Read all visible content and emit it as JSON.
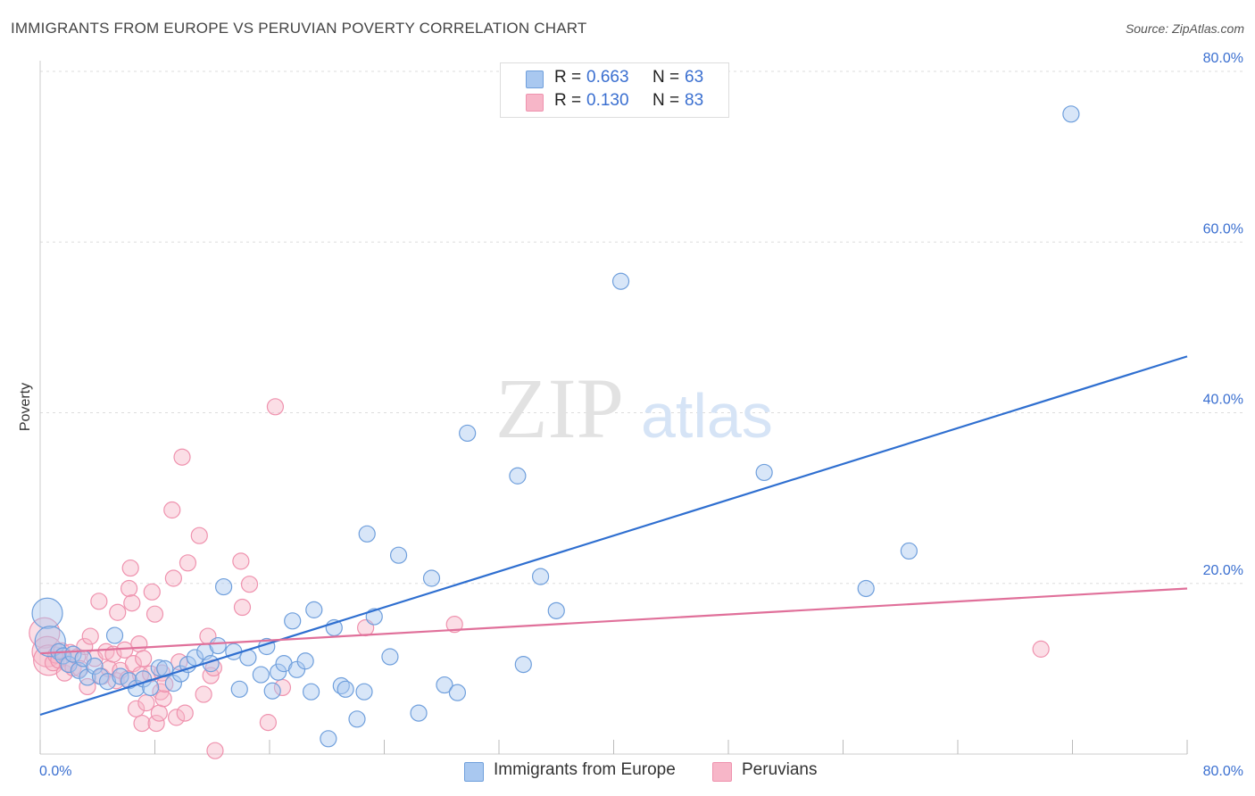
{
  "title": "IMMIGRANTS FROM EUROPE VS PERUVIAN POVERTY CORRELATION CHART",
  "source": "Source: ZipAtlas.com",
  "watermark": {
    "zip": "ZIP",
    "atlas": "atlas"
  },
  "legend": {
    "rows": [
      {
        "r_label": "R =",
        "r_value": "0.663",
        "n_label": "N =",
        "n_value": "63"
      },
      {
        "r_label": "R =",
        "r_value": "0.130",
        "n_label": "N =",
        "n_value": "83"
      }
    ]
  },
  "colors": {
    "europe_fill": "#a9c8f0",
    "europe_stroke": "#6f9fdc",
    "europe_line": "#2f6fd0",
    "peru_fill": "#f7b6c8",
    "peru_stroke": "#ef92ae",
    "peru_line": "#e0709a",
    "axis_text": "#3a6fd0",
    "grid": "#dddddd"
  },
  "chart_data": {
    "type": "scatter",
    "title": "IMMIGRANTS FROM EUROPE VS PERUVIAN POVERTY CORRELATION CHART",
    "xlabel": "",
    "ylabel": "Poverty",
    "xlim": [
      0,
      80
    ],
    "ylim": [
      0,
      80
    ],
    "x_tick_labels": [
      "0.0%",
      "80.0%"
    ],
    "y_tick_labels": [
      "20.0%",
      "40.0%",
      "60.0%",
      "80.0%"
    ],
    "y_ticks": [
      20,
      40,
      60,
      80
    ],
    "grid": true,
    "legend_position": "top-center",
    "series": [
      {
        "name": "Immigrants from Europe",
        "R": 0.663,
        "N": 63,
        "trend": {
          "x": [
            0,
            80
          ],
          "y": [
            4.6,
            46.6
          ]
        },
        "points": [
          {
            "x": 0.5,
            "y": 16.5,
            "big": true
          },
          {
            "x": 0.7,
            "y": 13.2,
            "big": true
          },
          {
            "x": 1.3,
            "y": 12.0
          },
          {
            "x": 1.6,
            "y": 11.5
          },
          {
            "x": 2.0,
            "y": 10.5
          },
          {
            "x": 2.3,
            "y": 11.7
          },
          {
            "x": 2.7,
            "y": 9.8
          },
          {
            "x": 3.0,
            "y": 11.2
          },
          {
            "x": 3.3,
            "y": 9.0
          },
          {
            "x": 3.8,
            "y": 10.3
          },
          {
            "x": 4.2,
            "y": 9.1
          },
          {
            "x": 4.7,
            "y": 8.5
          },
          {
            "x": 5.2,
            "y": 13.9
          },
          {
            "x": 5.6,
            "y": 9.1
          },
          {
            "x": 6.2,
            "y": 8.6
          },
          {
            "x": 6.7,
            "y": 7.7
          },
          {
            "x": 7.2,
            "y": 8.8
          },
          {
            "x": 7.7,
            "y": 7.8
          },
          {
            "x": 8.3,
            "y": 10.1
          },
          {
            "x": 8.7,
            "y": 10.0
          },
          {
            "x": 9.3,
            "y": 8.3
          },
          {
            "x": 9.8,
            "y": 9.4
          },
          {
            "x": 10.3,
            "y": 10.5
          },
          {
            "x": 10.8,
            "y": 11.3
          },
          {
            "x": 11.5,
            "y": 12.0
          },
          {
            "x": 11.9,
            "y": 10.6
          },
          {
            "x": 12.4,
            "y": 12.7
          },
          {
            "x": 12.8,
            "y": 19.6
          },
          {
            "x": 13.5,
            "y": 12.0
          },
          {
            "x": 13.9,
            "y": 7.6
          },
          {
            "x": 14.5,
            "y": 11.3
          },
          {
            "x": 15.4,
            "y": 9.3
          },
          {
            "x": 15.8,
            "y": 12.6
          },
          {
            "x": 16.2,
            "y": 7.4
          },
          {
            "x": 16.6,
            "y": 9.6
          },
          {
            "x": 17.0,
            "y": 10.6
          },
          {
            "x": 17.6,
            "y": 15.6
          },
          {
            "x": 17.9,
            "y": 9.9
          },
          {
            "x": 18.5,
            "y": 10.9
          },
          {
            "x": 18.9,
            "y": 7.3
          },
          {
            "x": 19.1,
            "y": 16.9
          },
          {
            "x": 20.1,
            "y": 1.8
          },
          {
            "x": 20.5,
            "y": 14.8
          },
          {
            "x": 21.0,
            "y": 8.0
          },
          {
            "x": 21.3,
            "y": 7.6
          },
          {
            "x": 22.1,
            "y": 4.1
          },
          {
            "x": 22.6,
            "y": 7.3
          },
          {
            "x": 22.8,
            "y": 25.8
          },
          {
            "x": 23.3,
            "y": 16.1
          },
          {
            "x": 24.4,
            "y": 11.4
          },
          {
            "x": 25.0,
            "y": 23.3
          },
          {
            "x": 26.4,
            "y": 4.8
          },
          {
            "x": 27.3,
            "y": 20.6
          },
          {
            "x": 28.2,
            "y": 8.1
          },
          {
            "x": 29.1,
            "y": 7.2
          },
          {
            "x": 29.8,
            "y": 37.6
          },
          {
            "x": 33.3,
            "y": 32.6
          },
          {
            "x": 33.7,
            "y": 10.5
          },
          {
            "x": 34.9,
            "y": 20.8
          },
          {
            "x": 36.0,
            "y": 16.8
          },
          {
            "x": 40.5,
            "y": 55.4
          },
          {
            "x": 50.5,
            "y": 33.0
          },
          {
            "x": 57.6,
            "y": 19.4
          },
          {
            "x": 60.6,
            "y": 23.8
          },
          {
            "x": 71.9,
            "y": 75.0
          }
        ]
      },
      {
        "name": "Peruvians",
        "R": 0.13,
        "N": 83,
        "trend": {
          "x": [
            0,
            80
          ],
          "y": [
            11.8,
            19.4
          ]
        },
        "points": [
          {
            "x": 0.3,
            "y": 14.2,
            "big": true
          },
          {
            "x": 0.5,
            "y": 12.0,
            "big": true
          },
          {
            "x": 0.6,
            "y": 11.0,
            "big": true
          },
          {
            "x": 0.9,
            "y": 10.7
          },
          {
            "x": 1.1,
            "y": 11.6
          },
          {
            "x": 1.3,
            "y": 11.0
          },
          {
            "x": 1.5,
            "y": 12.1
          },
          {
            "x": 1.7,
            "y": 9.5
          },
          {
            "x": 1.9,
            "y": 10.6
          },
          {
            "x": 2.1,
            "y": 11.9
          },
          {
            "x": 2.3,
            "y": 10.1
          },
          {
            "x": 2.6,
            "y": 11.4
          },
          {
            "x": 2.8,
            "y": 10.0
          },
          {
            "x": 3.1,
            "y": 12.6
          },
          {
            "x": 3.3,
            "y": 7.9
          },
          {
            "x": 3.5,
            "y": 13.8
          },
          {
            "x": 3.8,
            "y": 11.2
          },
          {
            "x": 4.1,
            "y": 17.9
          },
          {
            "x": 4.3,
            "y": 9.1
          },
          {
            "x": 4.6,
            "y": 12.0
          },
          {
            "x": 4.8,
            "y": 10.0
          },
          {
            "x": 5.1,
            "y": 11.7
          },
          {
            "x": 5.3,
            "y": 8.6
          },
          {
            "x": 5.4,
            "y": 16.6
          },
          {
            "x": 5.6,
            "y": 9.8
          },
          {
            "x": 5.9,
            "y": 12.2
          },
          {
            "x": 6.1,
            "y": 8.8
          },
          {
            "x": 6.2,
            "y": 19.4
          },
          {
            "x": 6.3,
            "y": 21.8
          },
          {
            "x": 6.4,
            "y": 17.7
          },
          {
            "x": 6.5,
            "y": 10.6
          },
          {
            "x": 6.7,
            "y": 5.3
          },
          {
            "x": 6.9,
            "y": 12.9
          },
          {
            "x": 7.0,
            "y": 9.3
          },
          {
            "x": 7.1,
            "y": 3.6
          },
          {
            "x": 7.2,
            "y": 11.2
          },
          {
            "x": 7.4,
            "y": 6.0
          },
          {
            "x": 7.7,
            "y": 9.4
          },
          {
            "x": 7.8,
            "y": 19.0
          },
          {
            "x": 8.0,
            "y": 16.4
          },
          {
            "x": 8.1,
            "y": 3.6
          },
          {
            "x": 8.3,
            "y": 4.8
          },
          {
            "x": 8.4,
            "y": 7.3
          },
          {
            "x": 8.5,
            "y": 9.5
          },
          {
            "x": 8.6,
            "y": 6.5
          },
          {
            "x": 8.7,
            "y": 8.2
          },
          {
            "x": 9.2,
            "y": 28.6
          },
          {
            "x": 9.3,
            "y": 20.6
          },
          {
            "x": 9.5,
            "y": 4.3
          },
          {
            "x": 9.7,
            "y": 10.8
          },
          {
            "x": 9.9,
            "y": 34.8
          },
          {
            "x": 10.1,
            "y": 4.8
          },
          {
            "x": 10.3,
            "y": 22.4
          },
          {
            "x": 11.1,
            "y": 25.6
          },
          {
            "x": 11.4,
            "y": 7.0
          },
          {
            "x": 11.7,
            "y": 13.8
          },
          {
            "x": 11.9,
            "y": 9.2
          },
          {
            "x": 12.1,
            "y": 10.1
          },
          {
            "x": 12.2,
            "y": 0.4
          },
          {
            "x": 14.0,
            "y": 22.6
          },
          {
            "x": 14.1,
            "y": 17.2
          },
          {
            "x": 14.6,
            "y": 19.9
          },
          {
            "x": 15.9,
            "y": 3.7
          },
          {
            "x": 16.4,
            "y": 40.7
          },
          {
            "x": 16.9,
            "y": 7.8
          },
          {
            "x": 22.7,
            "y": 14.8
          },
          {
            "x": 28.9,
            "y": 15.2
          },
          {
            "x": 69.8,
            "y": 12.3
          }
        ]
      }
    ]
  },
  "bottom_legend": [
    "Immigrants from Europe",
    "Peruvians"
  ]
}
